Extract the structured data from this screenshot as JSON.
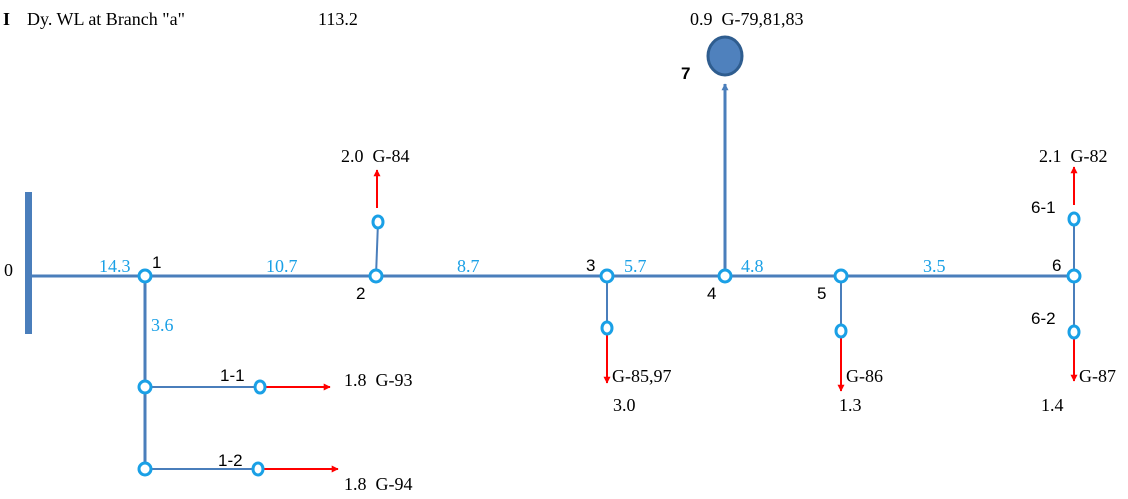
{
  "colors": {
    "pipe": "#4a7ebb",
    "node": "#1aa0e6",
    "arrow": "#ff0000",
    "segment_label": "#1aa0e6",
    "tank_fill": "#4f81bd",
    "tank_stroke": "#2f5d8f"
  },
  "header": {
    "marker": "I",
    "caption": "Dy. WL at Branch \"a\"",
    "value": "113.2"
  },
  "nodes": {
    "n0": "0",
    "n1": "1",
    "n2": "2",
    "n3": "3",
    "n4": "4",
    "n5": "5",
    "n6": "6",
    "n7": "7",
    "n1_1": "1-1",
    "n1_2": "1-2",
    "n6_1": "6-1",
    "n6_2": "6-2"
  },
  "segments": {
    "s0_1": "14.3",
    "s1_2": "10.7",
    "s2_3": "8.7",
    "s3_4": "5.7",
    "s4_5": "4.8",
    "s5_6": "3.5",
    "s1_down": "3.6"
  },
  "outlets": {
    "g84": "2.0  G-84",
    "g82": "2.1  G-82",
    "g93": "1.8  G-93",
    "g94": "1.8  G-94",
    "g85_name": "G-85,97",
    "g85_flow": "3.0",
    "g86_name": "G-86",
    "g86_flow": "1.3",
    "g87_name": "G-87",
    "g87_flow": "1.4",
    "tank": "0.9  G-79,81,83"
  }
}
